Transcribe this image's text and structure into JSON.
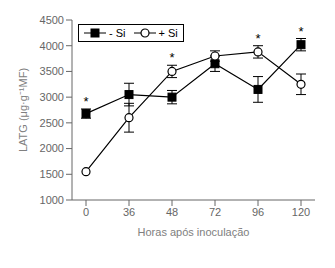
{
  "chart_data": {
    "type": "line",
    "title": "",
    "xlabel": "Horas após inoculação",
    "ylabel": "LATG (μg·g⁻¹MF)",
    "categories": [
      "0",
      "36",
      "48",
      "72",
      "96",
      "120"
    ],
    "series": [
      {
        "name": "- Si",
        "color": "#000000",
        "marker": "square",
        "line_style": "solid",
        "values": [
          2680,
          3050,
          3000,
          3650,
          3150,
          4020
        ],
        "errors": [
          90,
          220,
          130,
          150,
          250,
          120
        ]
      },
      {
        "name": "+ Si",
        "color": "#000000",
        "marker": "open_circle",
        "line_style": "solid",
        "values": [
          1550,
          2600,
          3500,
          3800,
          3880,
          3250
        ],
        "errors": [
          0,
          280,
          120,
          100,
          120,
          200
        ]
      }
    ],
    "annotations": [
      {
        "text": "*",
        "series": "- Si",
        "category": "0"
      },
      {
        "text": "*",
        "series": "- Si",
        "category": "120"
      },
      {
        "text": "*",
        "series": "+ Si",
        "category": "48"
      },
      {
        "text": "*",
        "series": "+ Si",
        "category": "96"
      }
    ],
    "ylim": [
      1000,
      4500
    ],
    "yticks": [
      1000,
      1500,
      2000,
      2500,
      3000,
      3500,
      4000,
      4500
    ],
    "grid": false,
    "legend": "upper left"
  }
}
